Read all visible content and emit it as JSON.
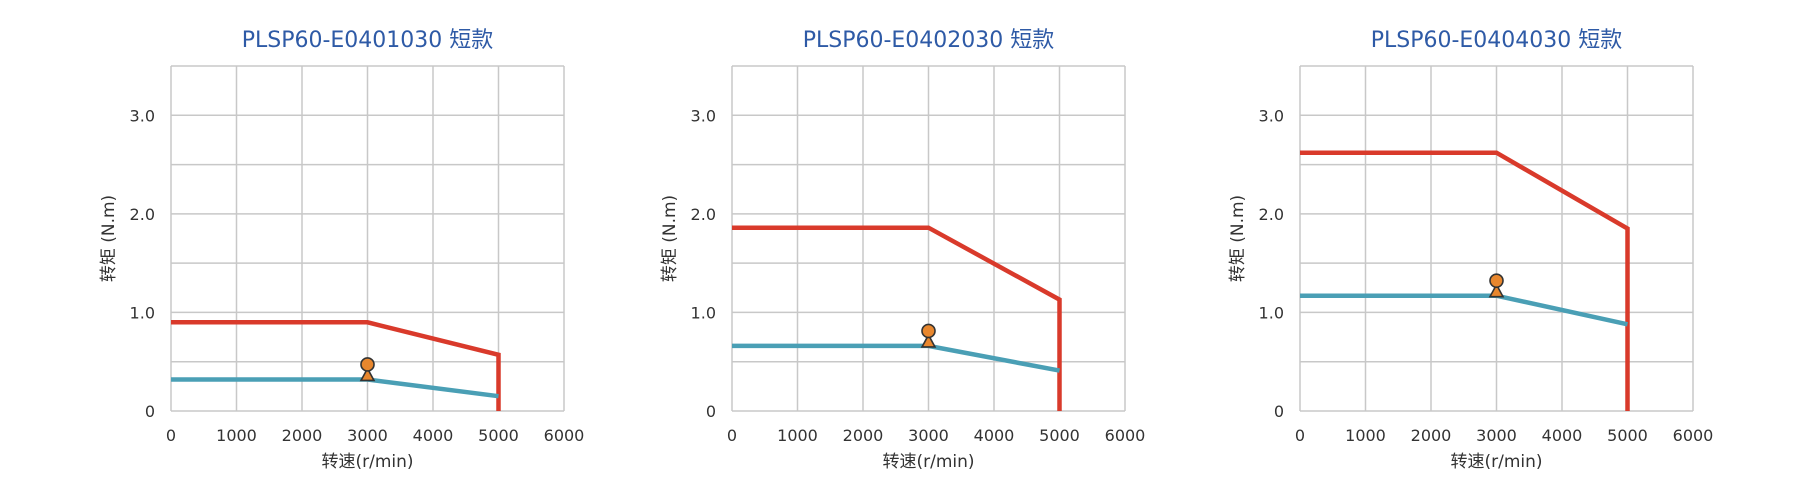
{
  "chart_data": [
    {
      "type": "line",
      "title": "PLSP60-E0401030 短款",
      "xlabel": "转速(r/min)",
      "ylabel": "转矩 (N.m)",
      "xlim": [
        0,
        6000
      ],
      "ylim": [
        0,
        3.5
      ],
      "xticks": [
        0,
        1000,
        2000,
        3000,
        4000,
        5000,
        6000
      ],
      "yticks": [
        {
          "v": 0,
          "label": "0"
        },
        {
          "v": 1,
          "label": "1.0"
        },
        {
          "v": 2,
          "label": "2.0"
        },
        {
          "v": 3,
          "label": "3.0"
        }
      ],
      "grid": true,
      "series": [
        {
          "name": "peak-torque",
          "color": "#d93a2b",
          "x": [
            0,
            3000,
            5000,
            5000
          ],
          "y": [
            0.9,
            0.9,
            0.57,
            0
          ]
        },
        {
          "name": "rated-torque",
          "color": "#4a9fb5",
          "x": [
            0,
            3000,
            5000
          ],
          "y": [
            0.32,
            0.32,
            0.15
          ]
        }
      ],
      "rated_point": {
        "x": 3000,
        "y": 0.32
      }
    },
    {
      "type": "line",
      "title": "PLSP60-E0402030 短款",
      "xlabel": "转速(r/min)",
      "ylabel": "转矩 (N.m)",
      "xlim": [
        0,
        6000
      ],
      "ylim": [
        0,
        3.5
      ],
      "xticks": [
        0,
        1000,
        2000,
        3000,
        4000,
        5000,
        6000
      ],
      "yticks": [
        {
          "v": 0,
          "label": "0"
        },
        {
          "v": 1,
          "label": "1.0"
        },
        {
          "v": 2,
          "label": "2.0"
        },
        {
          "v": 3,
          "label": "3.0"
        }
      ],
      "grid": true,
      "series": [
        {
          "name": "peak-torque",
          "color": "#d93a2b",
          "x": [
            0,
            3000,
            5000,
            5000
          ],
          "y": [
            1.86,
            1.86,
            1.13,
            0
          ]
        },
        {
          "name": "rated-torque",
          "color": "#4a9fb5",
          "x": [
            0,
            3000,
            5000
          ],
          "y": [
            0.66,
            0.66,
            0.41
          ]
        }
      ],
      "rated_point": {
        "x": 3000,
        "y": 0.66
      }
    },
    {
      "type": "line",
      "title": "PLSP60-E0404030 短款",
      "xlabel": "转速(r/min)",
      "ylabel": "转矩 (N.m)",
      "xlim": [
        0,
        6000
      ],
      "ylim": [
        0,
        3.5
      ],
      "xticks": [
        0,
        1000,
        2000,
        3000,
        4000,
        5000,
        6000
      ],
      "yticks": [
        {
          "v": 0,
          "label": "0"
        },
        {
          "v": 1,
          "label": "1.0"
        },
        {
          "v": 2,
          "label": "2.0"
        },
        {
          "v": 3,
          "label": "3.0"
        }
      ],
      "grid": true,
      "series": [
        {
          "name": "peak-torque",
          "color": "#d93a2b",
          "x": [
            0,
            3000,
            5000,
            5000
          ],
          "y": [
            2.62,
            2.62,
            1.85,
            0
          ]
        },
        {
          "name": "rated-torque",
          "color": "#4a9fb5",
          "x": [
            0,
            3000,
            5000
          ],
          "y": [
            1.17,
            1.17,
            0.88
          ]
        }
      ],
      "rated_point": {
        "x": 3000,
        "y": 1.17
      }
    }
  ],
  "colors": {
    "title": "#2e5aa6",
    "grid": "#c8c8c8",
    "axis_text": "#333333",
    "marker_fill": "#e8872e",
    "marker_stroke": "#333333"
  }
}
